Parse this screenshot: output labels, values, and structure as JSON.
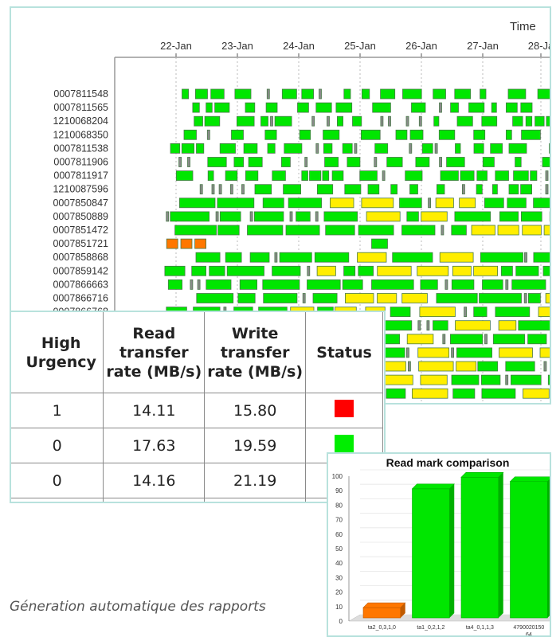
{
  "timeline": {
    "time_label": "Time",
    "dates": [
      "22-Jan",
      "23-Jan",
      "24-Jan",
      "25-Jan",
      "26-Jan",
      "27-Jan",
      "28-Ja"
    ],
    "rows": [
      "0007811548",
      "0007811565",
      "1210068204",
      "1210068350",
      "0007811538",
      "0007811906",
      "0007811917",
      "1210087596",
      "0007850847",
      "0007850889",
      "0007851472",
      "0007851721",
      "0007858868",
      "0007859142",
      "0007866663",
      "0007866716",
      "0007866768"
    ],
    "colors": {
      "green": "#00e600",
      "yellow": "#ffee00",
      "orange": "#ff7700",
      "grey": "#8a8a8a",
      "outline": "#4a7a4a"
    }
  },
  "table": {
    "headers": [
      "High Urgency",
      "Read transfer rate (MB/s)",
      "Write transfer rate (MB/s)",
      "Status"
    ],
    "rows": [
      {
        "high_urgency": "1",
        "read": "14.11",
        "write": "15.80",
        "status_color": "#ff0000"
      },
      {
        "high_urgency": "0",
        "read": "17.63",
        "write": "19.59",
        "status_color": "#00ee00"
      },
      {
        "high_urgency": "0",
        "read": "14.16",
        "write": "21.19",
        "status_color": "#00ee00"
      }
    ]
  },
  "chart_data": {
    "type": "bar",
    "title": "Read mark comparison",
    "categories": [
      "ta2_0,3,1,0",
      "ta1_0,2,1,2",
      "ta4_0,1,1,3",
      "4790020150 64"
    ],
    "values": [
      6,
      88,
      96,
      93
    ],
    "colors": [
      "#ff7700",
      "#00e600",
      "#00e600",
      "#00e600"
    ],
    "ylim": [
      0,
      100
    ],
    "yticks": [
      "0",
      "10",
      "20",
      "30",
      "40",
      "50",
      "60",
      "70",
      "80",
      "90",
      "100"
    ],
    "xlabel": "",
    "ylabel": "",
    "grid": true
  },
  "caption": "Géneration automatique des rapports"
}
